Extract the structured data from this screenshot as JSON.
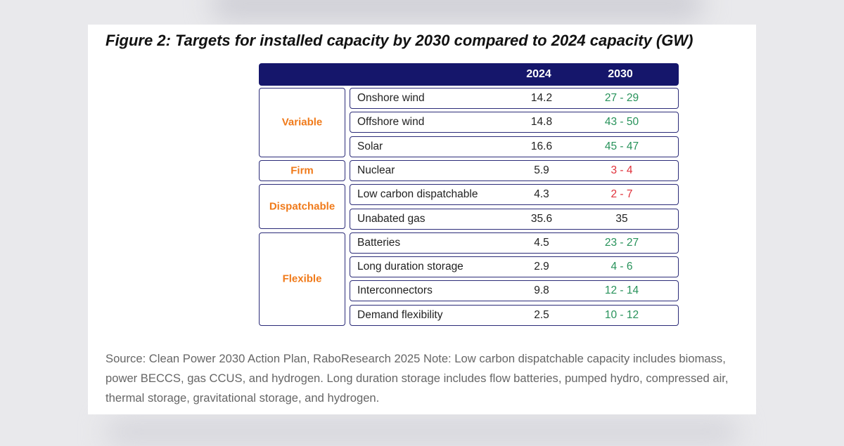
{
  "figure": {
    "title": "Figure 2: Targets for installed capacity by 2030 compared to 2024 capacity (GW)",
    "header": [
      "2024",
      "2030"
    ],
    "groups": [
      {
        "label": "Variable",
        "rows": [
          {
            "name": "Onshore wind",
            "v2024": "14.2",
            "v2030": "27 - 29",
            "color": "#27925a"
          },
          {
            "name": "Offshore wind",
            "v2024": "14.8",
            "v2030": "43 - 50",
            "color": "#27925a"
          },
          {
            "name": "Solar",
            "v2024": "16.6",
            "v2030": "45 - 47",
            "color": "#27925a"
          }
        ]
      },
      {
        "label": "Firm",
        "rows": [
          {
            "name": "Nuclear",
            "v2024": "5.9",
            "v2030": "3 - 4",
            "color": "#e0303a"
          }
        ]
      },
      {
        "label": "Dispatchable",
        "rows": [
          {
            "name": "Low carbon dispatchable",
            "v2024": "4.3",
            "v2030": "2 - 7",
            "color": "#e0303a"
          },
          {
            "name": "Unabated gas",
            "v2024": "35.6",
            "v2030": "35",
            "color": "#222222"
          }
        ]
      },
      {
        "label": "Flexible",
        "rows": [
          {
            "name": "Batteries",
            "v2024": "4.5",
            "v2030": "23 - 27",
            "color": "#27925a"
          },
          {
            "name": "Long duration storage",
            "v2024": "2.9",
            "v2030": "4 - 6",
            "color": "#27925a"
          },
          {
            "name": "Interconnectors",
            "v2024": "9.8",
            "v2030": "12 - 14",
            "color": "#27925a"
          },
          {
            "name": "Demand flexibility",
            "v2024": "2.5",
            "v2030": "10 - 12",
            "color": "#27925a"
          }
        ]
      }
    ],
    "source": "Source: Clean Power 2030 Action Plan, RaboResearch 2025 Note: Low carbon dispatchable capacity includes biomass, power BECCS, gas CCUS, and hydrogen. Long duration storage includes flow batteries, pumped hydro, compressed air, thermal storage, gravitational storage, and hydrogen."
  }
}
